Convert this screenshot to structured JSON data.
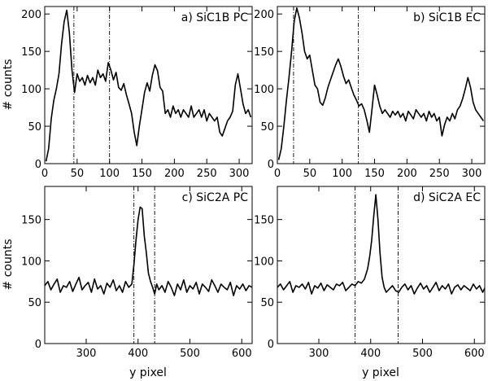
{
  "figure": {
    "ylabel": "# counts",
    "xlabel": "y pixel"
  },
  "chart_data": [
    {
      "type": "line",
      "label": "a) SiC1B  PC",
      "xlim": [
        0,
        320
      ],
      "ylim": [
        0,
        210
      ],
      "xticks": [
        0,
        50,
        100,
        150,
        200,
        250,
        300
      ],
      "yticks": [
        0,
        50,
        100,
        150,
        200
      ],
      "vlines": [
        45,
        100
      ],
      "x": [
        2,
        6,
        10,
        14,
        18,
        22,
        26,
        30,
        34,
        38,
        42,
        46,
        50,
        54,
        58,
        62,
        66,
        70,
        74,
        78,
        82,
        86,
        90,
        94,
        98,
        102,
        106,
        110,
        114,
        118,
        122,
        126,
        130,
        134,
        138,
        142,
        146,
        150,
        154,
        158,
        162,
        166,
        170,
        174,
        178,
        182,
        186,
        190,
        194,
        198,
        202,
        206,
        210,
        214,
        218,
        222,
        226,
        230,
        234,
        238,
        242,
        246,
        250,
        254,
        258,
        262,
        266,
        270,
        274,
        278,
        282,
        286,
        290,
        294,
        298,
        302,
        306,
        310,
        314,
        318
      ],
      "values": [
        3,
        20,
        60,
        85,
        100,
        120,
        160,
        190,
        205,
        175,
        125,
        95,
        120,
        110,
        115,
        105,
        118,
        108,
        115,
        105,
        125,
        115,
        120,
        110,
        135,
        125,
        112,
        122,
        102,
        98,
        107,
        92,
        80,
        67,
        42,
        24,
        50,
        72,
        95,
        108,
        97,
        118,
        132,
        124,
        102,
        97,
        67,
        72,
        62,
        77,
        67,
        72,
        62,
        72,
        67,
        62,
        77,
        62,
        67,
        72,
        62,
        72,
        57,
        67,
        62,
        57,
        62,
        42,
        37,
        47,
        57,
        62,
        70,
        105,
        120,
        100,
        80,
        67,
        72,
        62
      ]
    },
    {
      "type": "line",
      "label": "b) SiC1B  EC",
      "xlim": [
        0,
        320
      ],
      "ylim": [
        0,
        210
      ],
      "xticks": [
        0,
        50,
        100,
        150,
        200,
        250,
        300
      ],
      "yticks": [
        0,
        50,
        100,
        150,
        200
      ],
      "vlines": [
        25,
        125
      ],
      "x": [
        2,
        6,
        10,
        14,
        18,
        22,
        26,
        30,
        34,
        38,
        42,
        46,
        50,
        54,
        58,
        62,
        66,
        70,
        74,
        78,
        82,
        86,
        90,
        94,
        98,
        102,
        106,
        110,
        114,
        118,
        122,
        126,
        130,
        134,
        138,
        142,
        146,
        150,
        154,
        158,
        162,
        166,
        170,
        174,
        178,
        182,
        186,
        190,
        194,
        198,
        202,
        206,
        210,
        214,
        218,
        222,
        226,
        230,
        234,
        238,
        242,
        246,
        250,
        254,
        258,
        262,
        266,
        270,
        274,
        278,
        282,
        286,
        290,
        294,
        298,
        302,
        306,
        310,
        314,
        318
      ],
      "values": [
        5,
        20,
        50,
        85,
        115,
        150,
        190,
        208,
        195,
        175,
        150,
        140,
        145,
        125,
        105,
        100,
        82,
        78,
        88,
        102,
        112,
        122,
        132,
        140,
        130,
        117,
        107,
        112,
        102,
        92,
        85,
        77,
        80,
        72,
        58,
        42,
        72,
        105,
        92,
        77,
        67,
        72,
        67,
        62,
        70,
        65,
        70,
        62,
        67,
        57,
        70,
        65,
        60,
        72,
        67,
        62,
        67,
        57,
        70,
        62,
        67,
        57,
        62,
        37,
        52,
        62,
        57,
        67,
        60,
        72,
        77,
        87,
        100,
        115,
        102,
        82,
        72,
        67,
        62,
        57
      ]
    },
    {
      "type": "line",
      "label": "c) SiC2A  PC",
      "xlim": [
        220,
        620
      ],
      "ylim": [
        0,
        190
      ],
      "xticks": [
        300,
        400,
        500,
        600
      ],
      "yticks": [
        0,
        50,
        100,
        150
      ],
      "vlines": [
        392,
        432
      ],
      "x": [
        220,
        226,
        232,
        238,
        244,
        250,
        256,
        262,
        268,
        274,
        280,
        286,
        292,
        298,
        304,
        310,
        316,
        322,
        328,
        334,
        340,
        346,
        352,
        358,
        364,
        370,
        376,
        382,
        388,
        392,
        396,
        400,
        404,
        408,
        412,
        416,
        420,
        424,
        428,
        432,
        436,
        440,
        446,
        452,
        458,
        464,
        470,
        476,
        482,
        488,
        494,
        500,
        506,
        512,
        518,
        524,
        530,
        536,
        542,
        548,
        554,
        560,
        566,
        572,
        578,
        584,
        590,
        596,
        602,
        608,
        614,
        620
      ],
      "values": [
        70,
        75,
        65,
        72,
        78,
        62,
        70,
        68,
        75,
        63,
        72,
        80,
        65,
        70,
        74,
        62,
        78,
        66,
        70,
        60,
        73,
        68,
        77,
        64,
        70,
        62,
        75,
        68,
        72,
        95,
        125,
        150,
        165,
        163,
        130,
        110,
        85,
        75,
        68,
        60,
        72,
        65,
        70,
        62,
        75,
        68,
        58,
        72,
        65,
        77,
        62,
        70,
        66,
        74,
        60,
        72,
        68,
        63,
        77,
        70,
        62,
        72,
        68,
        65,
        74,
        58,
        70,
        66,
        72,
        64,
        70,
        68
      ]
    },
    {
      "type": "line",
      "label": "d) SiC2A  EC",
      "xlim": [
        220,
        620
      ],
      "ylim": [
        0,
        190
      ],
      "xticks": [
        300,
        400,
        500,
        600
      ],
      "yticks": [
        0,
        50,
        100,
        150
      ],
      "vlines": [
        370,
        453
      ],
      "x": [
        220,
        226,
        232,
        238,
        244,
        250,
        256,
        262,
        268,
        274,
        280,
        286,
        292,
        298,
        304,
        310,
        316,
        322,
        328,
        334,
        340,
        346,
        352,
        358,
        364,
        370,
        376,
        382,
        388,
        394,
        398,
        402,
        406,
        410,
        414,
        418,
        422,
        426,
        430,
        436,
        442,
        448,
        454,
        460,
        466,
        472,
        478,
        484,
        490,
        496,
        502,
        508,
        514,
        520,
        526,
        532,
        538,
        544,
        550,
        556,
        562,
        568,
        574,
        580,
        586,
        592,
        598,
        604,
        610,
        616,
        620
      ],
      "values": [
        68,
        72,
        65,
        70,
        75,
        62,
        70,
        68,
        72,
        66,
        74,
        60,
        70,
        67,
        73,
        64,
        71,
        68,
        65,
        72,
        70,
        74,
        64,
        68,
        72,
        70,
        75,
        73,
        78,
        90,
        105,
        125,
        155,
        180,
        150,
        110,
        80,
        68,
        62,
        66,
        70,
        64,
        62,
        68,
        72,
        65,
        70,
        60,
        67,
        73,
        66,
        70,
        62,
        68,
        74,
        64,
        70,
        66,
        72,
        60,
        68,
        71,
        65,
        70,
        67,
        64,
        72,
        66,
        70,
        62,
        67
      ]
    }
  ]
}
